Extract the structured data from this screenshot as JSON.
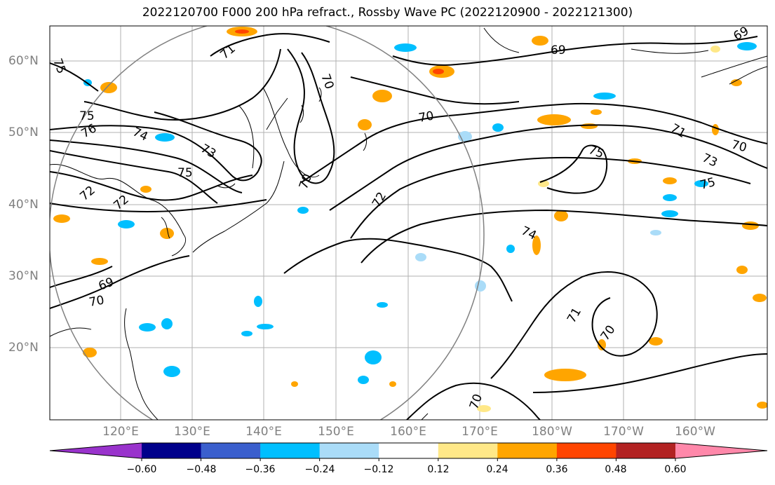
{
  "title": "2022120700 F000 200 hPa refract., Rossby Wave PC (2022120900 - 2022121300)",
  "lat_labels": [
    "60°N",
    "50°N",
    "40°N",
    "30°N",
    "20°N"
  ],
  "lon_labels": [
    "120°E",
    "130°E",
    "140°E",
    "150°E",
    "160°E",
    "170°E",
    "180°W",
    "170°W",
    "160°W"
  ],
  "colorbar": {
    "ticks": [
      "−0.60",
      "−0.48",
      "−0.36",
      "−0.24",
      "−0.12",
      "0.12",
      "0.24",
      "0.36",
      "0.48",
      "0.60"
    ],
    "colors": [
      "#9933cc",
      "#00008b",
      "#3a5fcd",
      "#00bfff",
      "#aadcf8",
      "#ffffff",
      "#ffe888",
      "#ffa500",
      "#ff4500",
      "#b22222",
      "#ff88aa"
    ]
  },
  "contour_labels": [
    "75",
    "75",
    "74",
    "73",
    "75",
    "72",
    "71",
    "70",
    "69",
    "70",
    "69",
    "70",
    "70",
    "72",
    "75",
    "71",
    "73",
    "70",
    "75",
    "74",
    "71",
    "70",
    "70",
    "69",
    "76",
    "72"
  ]
}
